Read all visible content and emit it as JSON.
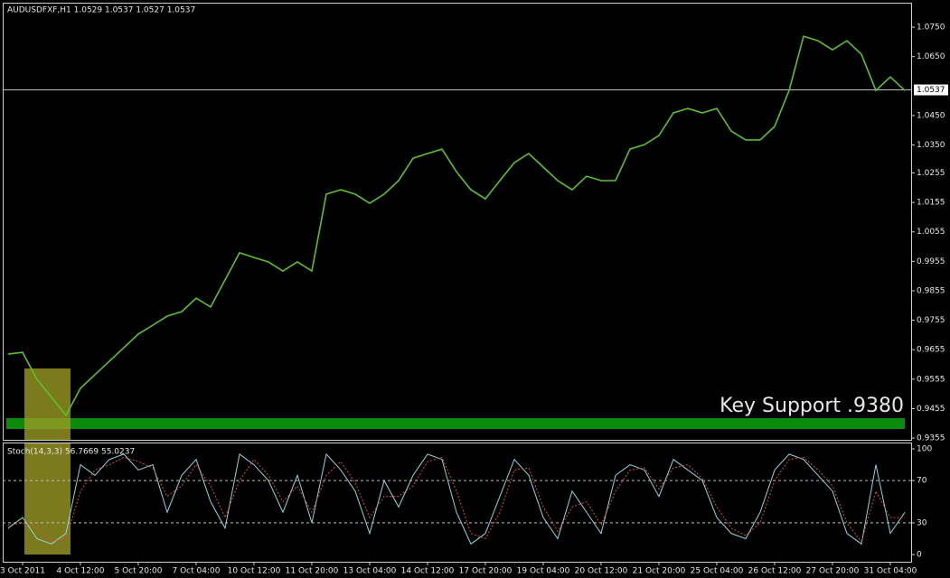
{
  "chart_data": [
    {
      "type": "line",
      "title": "AUDUSDFXF,H1  1.0529 1.0537 1.0527 1.0537",
      "annotation": "Key Support .9380",
      "categories": [
        null,
        "3 Oct 2011",
        null,
        null,
        null,
        "4 Oct 12:00",
        null,
        null,
        null,
        "5 Oct 20:00",
        null,
        null,
        null,
        "7 Oct 04:00",
        null,
        null,
        null,
        "10 Oct 12:00",
        null,
        null,
        null,
        "11 Oct 20:00",
        null,
        null,
        null,
        "13 Oct 04:00",
        null,
        null,
        null,
        "14 Oct 12:00",
        null,
        null,
        null,
        "17 Oct 20:00",
        null,
        null,
        null,
        "19 Oct 04:00",
        null,
        null,
        null,
        "20 Oct 12:00",
        null,
        null,
        null,
        "21 Oct 20:00",
        null,
        null,
        null,
        "25 Oct 04:00",
        null,
        null,
        null,
        "26 Oct 12:00",
        null,
        null,
        null,
        "27 Oct 20:00",
        null,
        null,
        null,
        "31 Oct 04:00",
        null
      ],
      "series": [
        {
          "color": "#5cc02c",
          "values": [
            0.964,
            0.9646,
            0.9554,
            0.9493,
            0.9432,
            0.9524,
            0.957,
            0.9616,
            0.9662,
            0.9708,
            0.9738,
            0.9769,
            0.9784,
            0.983,
            0.98,
            0.9892,
            0.9984,
            0.9968,
            0.9953,
            0.9922,
            0.9953,
            0.9922,
            1.0183,
            1.0198,
            1.0183,
            1.0152,
            1.0183,
            1.0229,
            1.0305,
            1.0321,
            1.0336,
            1.0259,
            1.0198,
            1.0167,
            1.0229,
            1.029,
            1.0321,
            1.0275,
            1.0229,
            1.0198,
            1.0244,
            1.0229,
            1.0229,
            1.0336,
            1.0351,
            1.0382,
            1.0459,
            1.0474,
            1.0459,
            1.0474,
            1.0397,
            1.0367,
            1.0367,
            1.0413,
            1.0535,
            1.0719,
            1.0704,
            1.0673,
            1.0704,
            1.0658,
            1.0535,
            1.0581,
            1.0535
          ]
        }
      ],
      "last_price": 1.0537,
      "ylim": [
        0.9349,
        1.0833
      ],
      "yticks": [
        {
          "value": 1.075,
          "label": "1.0750"
        },
        {
          "value": 1.065,
          "label": "1.0650"
        },
        {
          "value": 1.045,
          "label": "1.0450"
        },
        {
          "value": 1.035,
          "label": "1.0350"
        },
        1.0255,
        1.0155,
        1.0055,
        0.9955,
        0.9855,
        0.9755,
        0.9655,
        0.9555,
        0.9455,
        0.9355
      ]
    },
    {
      "type": "line",
      "title": "Stoch(14,3,3) 56.7669 55.0237",
      "series": [
        {
          "color": "#8fd8dc",
          "values": [
            25,
            35,
            15,
            10,
            20,
            85,
            75,
            90,
            95,
            80,
            85,
            40,
            75,
            90,
            50,
            25,
            95,
            85,
            70,
            40,
            75,
            30,
            95,
            80,
            60,
            20,
            70,
            45,
            75,
            95,
            90,
            40,
            10,
            20,
            55,
            90,
            75,
            35,
            15,
            60,
            40,
            20,
            75,
            85,
            80,
            55,
            90,
            80,
            70,
            35,
            20,
            15,
            40,
            80,
            95,
            90,
            75,
            60,
            20,
            10,
            85,
            20,
            40
          ]
        },
        {
          "color": "#e04848",
          "dashed": true,
          "values": [
            28,
            30,
            25,
            12,
            15,
            60,
            80,
            85,
            92,
            88,
            82,
            55,
            65,
            85,
            65,
            35,
            70,
            90,
            75,
            50,
            65,
            40,
            75,
            88,
            68,
            35,
            55,
            55,
            65,
            88,
            92,
            60,
            20,
            15,
            40,
            80,
            82,
            45,
            22,
            45,
            50,
            28,
            60,
            80,
            82,
            62,
            82,
            85,
            72,
            45,
            25,
            18,
            30,
            70,
            90,
            92,
            80,
            65,
            30,
            12,
            60,
            35,
            35
          ]
        }
      ],
      "levels": [
        30,
        70
      ],
      "ylim": [
        -6.8,
        106
      ],
      "yticks": [
        0,
        30,
        70,
        100
      ]
    }
  ]
}
